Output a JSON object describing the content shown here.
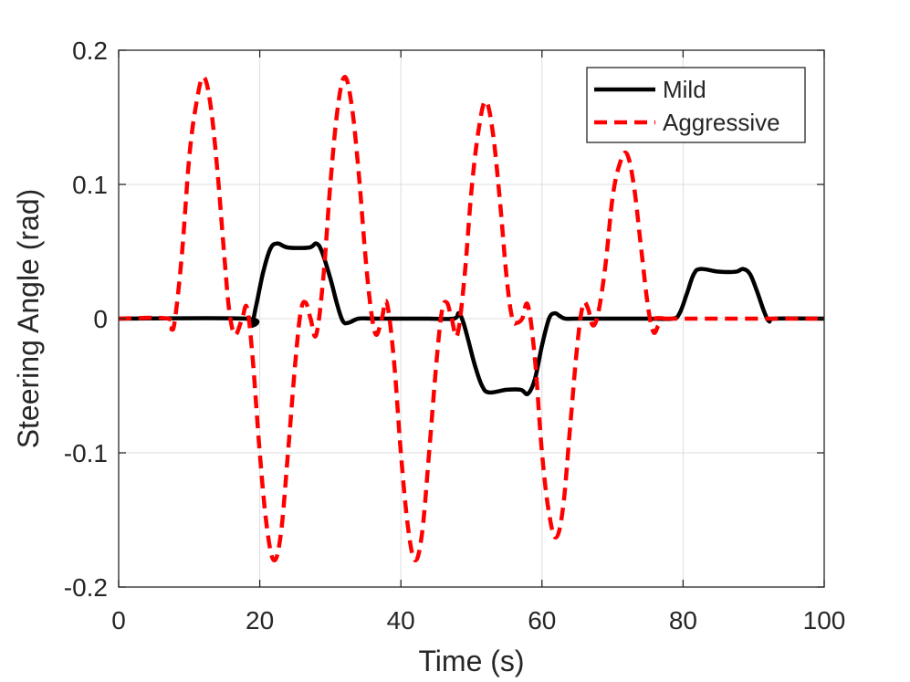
{
  "chart_data": {
    "type": "line",
    "title": "",
    "xlabel": "Time (s)",
    "ylabel": "Steering Angle (rad)",
    "xlim": [
      0,
      100
    ],
    "ylim": [
      -0.2,
      0.2
    ],
    "grid": true,
    "legend_position": "top-right",
    "x_ticks": [
      0,
      20,
      40,
      60,
      80,
      100
    ],
    "x_tick_labels": [
      "0",
      "20",
      "40",
      "60",
      "80",
      "100"
    ],
    "y_ticks": [
      -0.2,
      -0.1,
      0,
      0.1,
      0.2
    ],
    "y_tick_labels": [
      "-0.2",
      "-0.1",
      "0",
      "0.1",
      "0.2"
    ],
    "series": [
      {
        "name": "Mild",
        "color": "#000000",
        "dash": "solid",
        "x": [
          0,
          18,
          18.8,
          19.5,
          20.5,
          21.5,
          22.5,
          24,
          27,
          28,
          28.8,
          30,
          31,
          31.8,
          32.6,
          34,
          36,
          40,
          44,
          47.5,
          48.2,
          48.8,
          49.5,
          50.5,
          51.5,
          52.5,
          55,
          57,
          58,
          59,
          60,
          61,
          61.8,
          62.5,
          63.3,
          65,
          70,
          75,
          78.5,
          79.5,
          80.5,
          81.5,
          82.5,
          85,
          87.5,
          88.5,
          89.5,
          90.5,
          91.5,
          92.2,
          93,
          100
        ],
        "y": [
          0,
          0,
          -0.005,
          0.01,
          0.035,
          0.052,
          0.056,
          0.053,
          0.053,
          0.056,
          0.05,
          0.03,
          0.01,
          -0.002,
          -0.003,
          0,
          0,
          0,
          0,
          0,
          0.004,
          -0.002,
          -0.015,
          -0.035,
          -0.05,
          -0.055,
          -0.053,
          -0.053,
          -0.056,
          -0.045,
          -0.02,
          0.0,
          0.004,
          0.002,
          0,
          0,
          0,
          0,
          0,
          0.004,
          0.018,
          0.033,
          0.037,
          0.035,
          0.035,
          0.037,
          0.033,
          0.02,
          0.005,
          -0.002,
          0,
          0
        ]
      },
      {
        "name": "Aggressive",
        "color": "#ff0000",
        "dash": "dashed",
        "x": [
          0,
          7,
          7.5,
          8,
          9,
          10,
          11,
          12,
          13,
          14,
          15,
          15.7,
          16.5,
          17.5,
          18.2,
          19,
          20,
          21,
          22,
          23,
          24,
          25,
          25.8,
          26.5,
          27.2,
          28,
          29,
          30,
          31,
          32,
          33,
          34,
          35,
          35.8,
          36.5,
          37.3,
          38,
          39,
          40,
          41,
          42,
          43,
          44,
          45,
          45.8,
          46.5,
          47.2,
          48,
          49,
          50,
          51,
          52,
          53,
          54,
          55,
          55.8,
          56.5,
          57.2,
          58,
          59,
          60,
          61,
          62,
          63,
          64,
          65,
          65.8,
          66.5,
          67.2,
          68,
          69,
          70,
          71,
          72,
          73,
          74,
          75,
          75.8,
          76.5,
          77.2,
          78,
          100
        ],
        "y": [
          0,
          0,
          -0.008,
          0.0,
          0.05,
          0.12,
          0.16,
          0.18,
          0.16,
          0.11,
          0.045,
          0.005,
          -0.012,
          0.0,
          0.008,
          -0.03,
          -0.1,
          -0.155,
          -0.18,
          -0.16,
          -0.1,
          -0.035,
          0.005,
          0.012,
          0.0,
          -0.012,
          0.03,
          0.1,
          0.155,
          0.18,
          0.16,
          0.11,
          0.045,
          0.005,
          -0.012,
          0.0,
          0.012,
          -0.03,
          -0.1,
          -0.155,
          -0.18,
          -0.16,
          -0.1,
          -0.035,
          0.005,
          0.012,
          0.0,
          -0.012,
          0.03,
          0.095,
          0.14,
          0.162,
          0.14,
          0.09,
          0.03,
          0.0,
          -0.003,
          0.0,
          0.01,
          -0.03,
          -0.1,
          -0.145,
          -0.163,
          -0.14,
          -0.08,
          -0.02,
          0.01,
          0.008,
          -0.005,
          0.005,
          0.04,
          0.09,
          0.115,
          0.123,
          0.1,
          0.055,
          0.01,
          -0.01,
          -0.005,
          0.0,
          0.0,
          0
        ]
      }
    ]
  }
}
